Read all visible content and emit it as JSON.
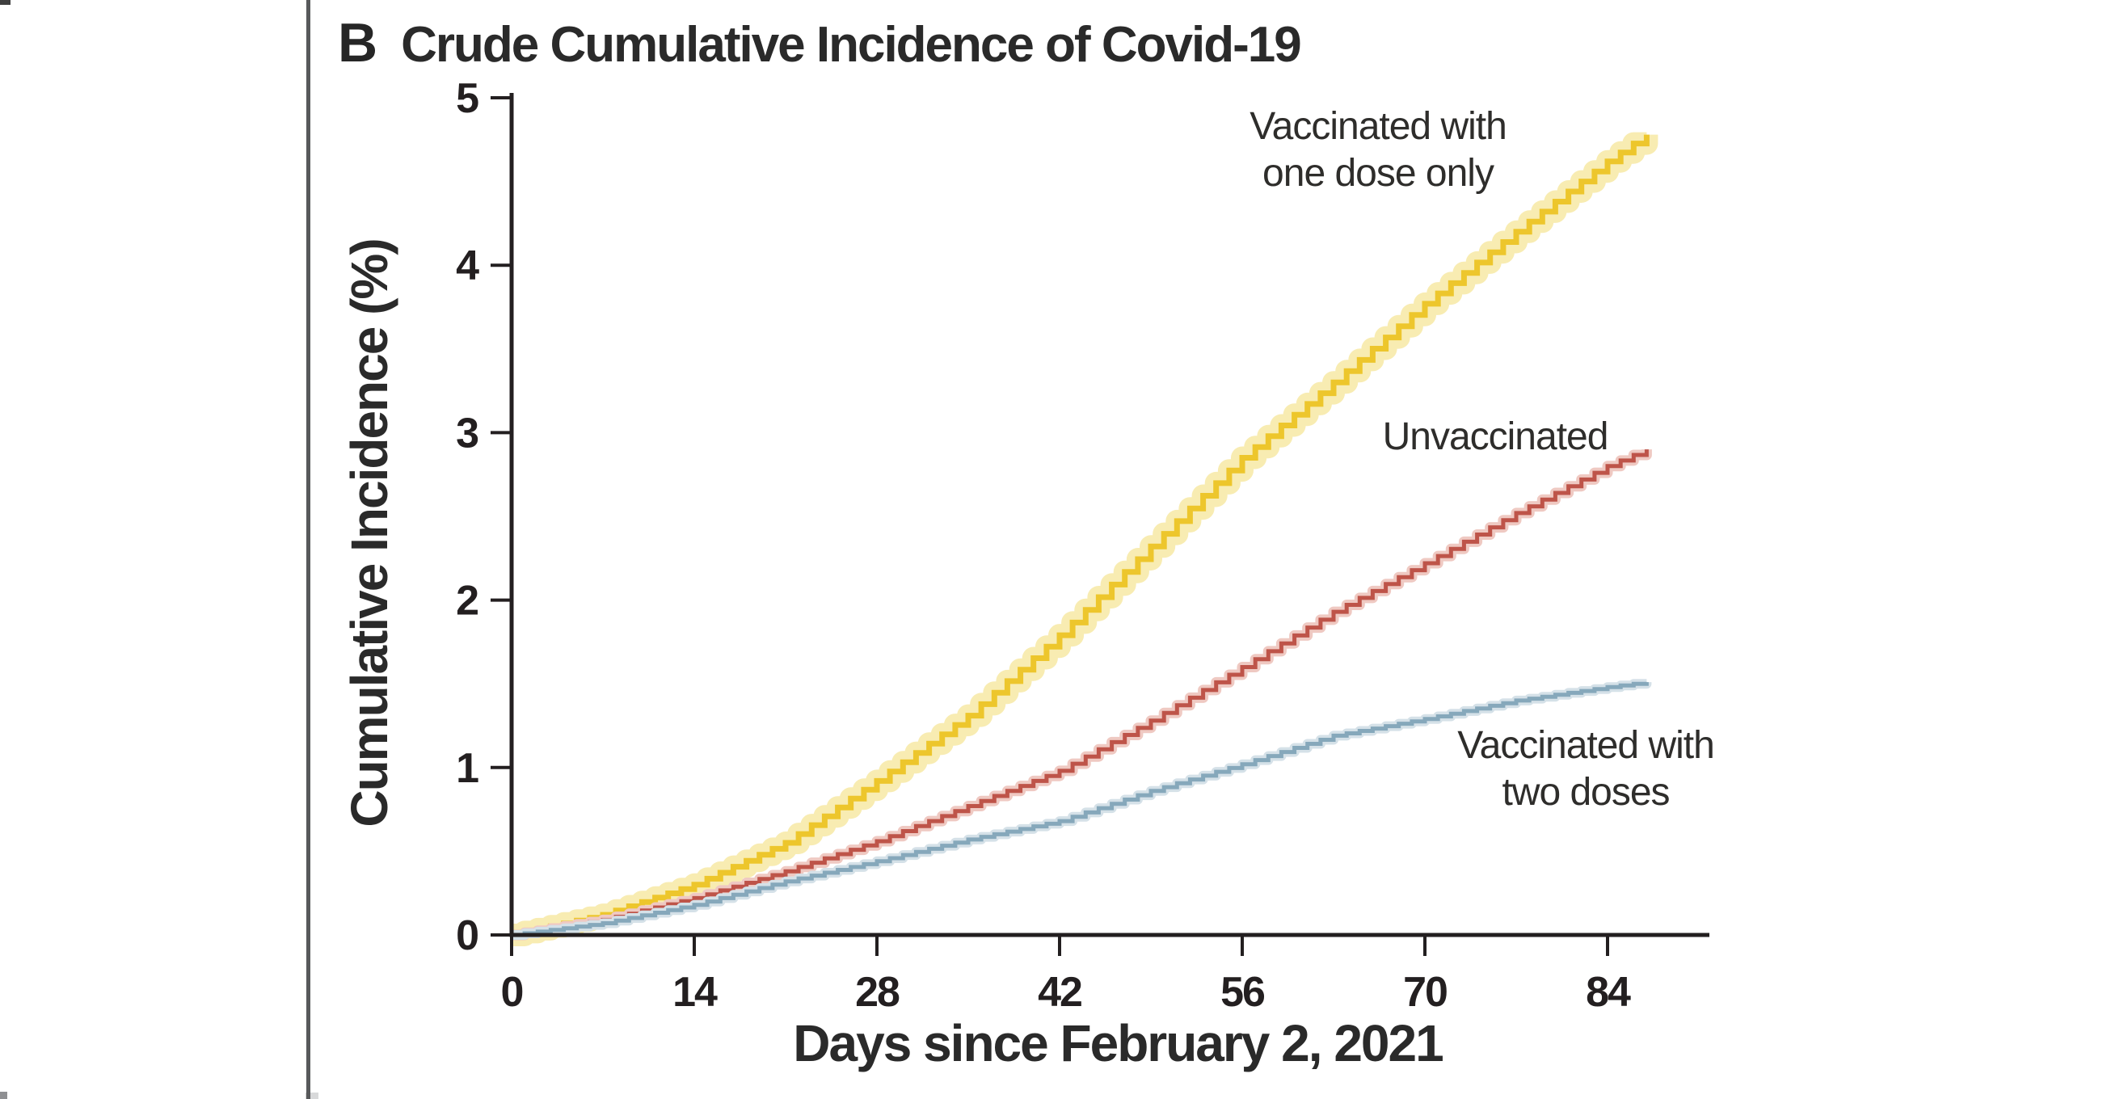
{
  "panel": {
    "label": "B",
    "title": "Crude Cumulative Incidence of Covid-19"
  },
  "colors": {
    "axis": "#231f20",
    "divider_gray": "#58595b",
    "one_dose_line": "#EDC62C",
    "one_dose_band": "#F8ECB2",
    "unvaccinated_line": "#BE5449",
    "unvaccinated_band": "#EFC9C2",
    "two_doses_line": "#86A8BB",
    "two_doses_band": "#D5E1E8"
  },
  "chart_data": {
    "type": "line",
    "line_style": "step-after",
    "title": "Crude Cumulative Incidence of Covid-19",
    "xlabel": "Days since February 2, 2021",
    "ylabel": "Cumulative Incidence (%)",
    "xlim": [
      0,
      92
    ],
    "ylim": [
      0,
      5
    ],
    "x_ticks": [
      0,
      14,
      28,
      42,
      56,
      70,
      84
    ],
    "y_ticks": [
      0,
      1,
      2,
      3,
      4,
      5
    ],
    "grid": false,
    "legend_position": "inline-labels",
    "x": [
      0,
      7,
      14,
      21,
      28,
      35,
      42,
      49,
      56,
      63,
      70,
      77,
      84,
      87
    ],
    "series": [
      {
        "key": "one-dose",
        "name": "Vaccinated with one dose only",
        "label_lines": [
          "Vaccinated with",
          "one dose only"
        ],
        "color": "#EDC62C",
        "band_color": "#F8ECB2",
        "band_width": 28,
        "line_width": 7,
        "values": [
          0,
          0.12,
          0.3,
          0.55,
          0.92,
          1.31,
          1.79,
          2.32,
          2.85,
          3.3,
          3.77,
          4.2,
          4.62,
          4.78
        ]
      },
      {
        "key": "unvaccinated",
        "name": "Unvaccinated",
        "label_lines": [
          "Unvaccinated"
        ],
        "color": "#BE5449",
        "band_color": "#EFC9C2",
        "band_width": 13,
        "line_width": 5,
        "values": [
          0,
          0.09,
          0.22,
          0.38,
          0.56,
          0.77,
          0.98,
          1.28,
          1.6,
          1.93,
          2.22,
          2.52,
          2.8,
          2.9
        ]
      },
      {
        "key": "two-doses",
        "name": "Vaccinated with two doses",
        "label_lines": [
          "Vaccinated with",
          "two doses"
        ],
        "color": "#86A8BB",
        "band_color": "#D5E1E8",
        "band_width": 12,
        "line_width": 5,
        "values": [
          0,
          0.07,
          0.18,
          0.32,
          0.44,
          0.57,
          0.68,
          0.86,
          1.02,
          1.19,
          1.29,
          1.4,
          1.48,
          1.51
        ]
      }
    ]
  }
}
